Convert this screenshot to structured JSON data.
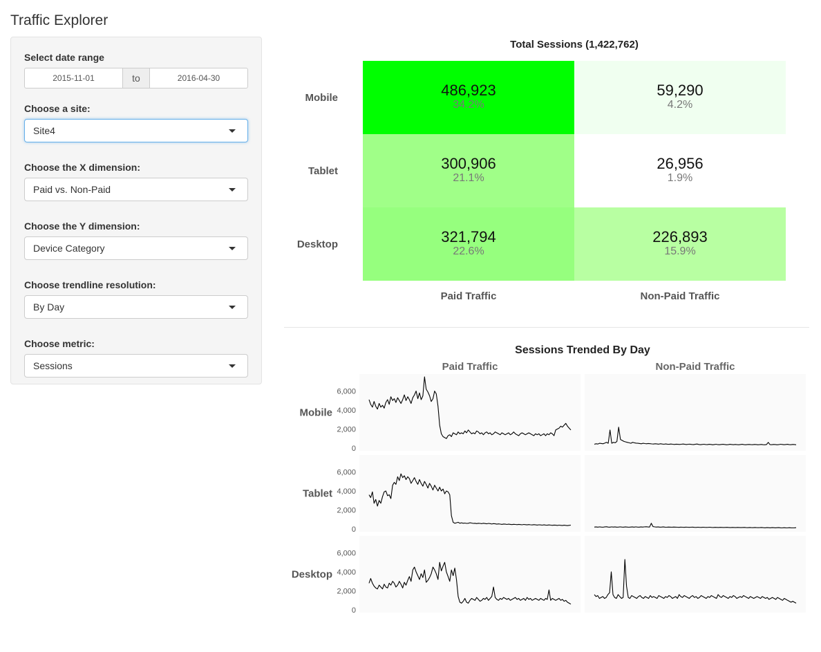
{
  "app": {
    "title": "Traffic Explorer"
  },
  "sidebar": {
    "date_range": {
      "label": "Select date range",
      "start": "2015-11-01",
      "separator": "to",
      "end": "2016-04-30"
    },
    "site": {
      "label": "Choose a site:",
      "value": "Site4"
    },
    "x_dimension": {
      "label": "Choose the X dimension:",
      "value": "Paid vs. Non-Paid"
    },
    "y_dimension": {
      "label": "Choose the Y dimension:",
      "value": "Device Category"
    },
    "resolution": {
      "label": "Choose trendline resolution:",
      "value": "By Day"
    },
    "metric": {
      "label": "Choose metric:",
      "value": "Sessions"
    }
  },
  "heatmap": {
    "title": "Total Sessions (1,422,762)",
    "columns": [
      "Paid Traffic",
      "Non-Paid Traffic"
    ],
    "rows": [
      "Mobile",
      "Tablet",
      "Desktop"
    ],
    "cells": [
      [
        {
          "value": "486,923",
          "pct": "34.2%",
          "color": "#00ff00"
        },
        {
          "value": "59,290",
          "pct": "4.2%",
          "color": "#f0fff0"
        }
      ],
      [
        {
          "value": "300,906",
          "pct": "21.1%",
          "color": "#a0ff88"
        },
        {
          "value": "26,956",
          "pct": "1.9%",
          "color": "#ffffff"
        }
      ],
      [
        {
          "value": "321,794",
          "pct": "22.6%",
          "color": "#96ff7e"
        },
        {
          "value": "226,893",
          "pct": "15.9%",
          "color": "#b8ffa2"
        }
      ]
    ]
  },
  "chart_data": {
    "type": "line",
    "title": "Sessions Trended By Day",
    "columns": [
      "Paid Traffic",
      "Non-Paid Traffic"
    ],
    "rows": [
      "Mobile",
      "Tablet",
      "Desktop"
    ],
    "y_ticks": [
      "6,000",
      "4,000",
      "2,000",
      "0"
    ],
    "ylim": [
      0,
      7500
    ],
    "xlim": [
      "2015-11-01",
      "2016-04-30"
    ],
    "panels": [
      {
        "row": "Mobile",
        "column": "Paid Traffic",
        "values": [
          5100,
          4600,
          4300,
          4900,
          4400,
          4100,
          4700,
          4300,
          4500,
          4200,
          4800,
          5100,
          4600,
          5400,
          5000,
          5200,
          4800,
          5300,
          5000,
          4700,
          5100,
          5600,
          5000,
          5400,
          5100,
          4700,
          5300,
          5600,
          6000,
          5200,
          5800,
          5100,
          5500,
          7500,
          6200,
          5900,
          5500,
          4900,
          5200,
          6000,
          5700,
          4400,
          2400,
          1500,
          1200,
          1100,
          1000,
          1300,
          1400,
          1200,
          1600,
          1500,
          1400,
          1700,
          1500,
          1600,
          1500,
          1800,
          1600,
          1900,
          1700,
          1500,
          1600,
          1500,
          1800,
          1700,
          1500,
          1600,
          1400,
          1600,
          1700,
          1500,
          1600,
          1400,
          1500,
          1700,
          1600,
          1500,
          1400,
          1600,
          1500,
          1400,
          1500,
          1600,
          1400,
          1500,
          1700,
          1500,
          1400,
          1300,
          1500,
          1600,
          1500,
          1400,
          1500,
          1600,
          1500,
          1400,
          1300,
          1500,
          1400,
          1500,
          1300,
          1400,
          1500,
          1300,
          1500,
          1400,
          1600,
          1500,
          1300,
          1900,
          2000,
          2100,
          2300,
          2200,
          2400,
          2600,
          2300,
          2100,
          1900
        ]
      },
      {
        "row": "Mobile",
        "column": "Non-Paid Traffic",
        "values": [
          400,
          450,
          420,
          500,
          480,
          450,
          520,
          600,
          500,
          1900,
          500,
          600,
          550,
          700,
          2200,
          900,
          800,
          700,
          650,
          600,
          550,
          500,
          600,
          550,
          520,
          500,
          480,
          450,
          500,
          470,
          450,
          480,
          460,
          440,
          420,
          450,
          430,
          410,
          450,
          420,
          400,
          430,
          410,
          390,
          420,
          400,
          380,
          410,
          390,
          380,
          400,
          420,
          390,
          370,
          400,
          410,
          380,
          360,
          390,
          420,
          380,
          350,
          380,
          400,
          370,
          360,
          390,
          380,
          340,
          370,
          400,
          360,
          350,
          380,
          390,
          370,
          340,
          360,
          390,
          370,
          350,
          380,
          360,
          340,
          370,
          390,
          360,
          340,
          370,
          380,
          360,
          350,
          380,
          370,
          340,
          360,
          380,
          350,
          340,
          370,
          600,
          360,
          350,
          380,
          370,
          340,
          360,
          400,
          380,
          350,
          370,
          390,
          360,
          350,
          380,
          370,
          340
        ]
      },
      {
        "row": "Tablet",
        "column": "Paid Traffic",
        "values": [
          3600,
          3300,
          3900,
          2700,
          3100,
          2400,
          3000,
          2700,
          3400,
          3900,
          4000,
          3500,
          3600,
          3200,
          4600,
          4900,
          4700,
          5500,
          5100,
          5800,
          5400,
          5600,
          5200,
          5500,
          5300,
          4800,
          5100,
          5400,
          5000,
          4700,
          5200,
          4800,
          4500,
          5000,
          4700,
          4300,
          4800,
          4500,
          4100,
          4600,
          4300,
          4000,
          4400,
          4000,
          4200,
          3700,
          4000,
          3900,
          3600,
          1400,
          700,
          600,
          650,
          700,
          600,
          650,
          600,
          620,
          580,
          600,
          650,
          620,
          580,
          600,
          560,
          600,
          580,
          550,
          600,
          570,
          540,
          580,
          560,
          520,
          560,
          540,
          500,
          530,
          510,
          480,
          520,
          500,
          470,
          500,
          480,
          460,
          490,
          470,
          450,
          480,
          460,
          440,
          470,
          450,
          430,
          460,
          440,
          420,
          450,
          430,
          410,
          440,
          420,
          400,
          430,
          410,
          390,
          420,
          400,
          380,
          410,
          390,
          370,
          400,
          380,
          360,
          390,
          370,
          350,
          380,
          400
        ]
      },
      {
        "row": "Tablet",
        "column": "Non-Paid Traffic",
        "values": [
          200,
          210,
          190,
          220,
          200,
          180,
          210,
          230,
          200,
          190,
          220,
          200,
          210,
          190,
          200,
          220,
          200,
          190,
          210,
          200,
          180,
          200,
          210,
          190,
          220,
          200,
          190,
          210,
          200,
          220,
          230,
          210,
          200,
          600,
          250,
          220,
          200,
          210,
          190,
          200,
          210,
          190,
          180,
          200,
          190,
          180,
          200,
          190,
          180,
          170,
          190,
          180,
          170,
          190,
          180,
          170,
          180,
          190,
          170,
          160,
          180,
          170,
          160,
          180,
          170,
          160,
          170,
          180,
          160,
          150,
          170,
          160,
          150,
          170,
          160,
          150,
          160,
          170,
          150,
          140,
          160,
          150,
          140,
          160,
          150,
          140,
          150,
          160,
          140,
          130,
          150,
          140,
          130,
          150,
          140,
          130,
          140,
          150,
          130,
          120,
          140,
          130,
          120,
          140,
          130,
          120,
          130,
          140,
          120,
          110,
          130,
          120,
          110,
          130,
          120,
          110,
          120,
          130
        ]
      },
      {
        "row": "Desktop",
        "column": "Paid Traffic",
        "values": [
          2800,
          3300,
          2800,
          2500,
          2300,
          2200,
          2600,
          2400,
          2200,
          2700,
          2400,
          2300,
          2800,
          2600,
          3000,
          2800,
          2400,
          2600,
          3000,
          2700,
          2300,
          2900,
          2600,
          3100,
          3500,
          3000,
          4200,
          4500,
          4000,
          3600,
          3200,
          3800,
          3400,
          4200,
          2900,
          3100,
          3400,
          3800,
          4500,
          4200,
          3800,
          3200,
          5000,
          4100,
          4600,
          5000,
          4000,
          3500,
          3000,
          4200,
          3600,
          4400,
          3200,
          1400,
          800,
          700,
          900,
          1200,
          800,
          700,
          1000,
          1200,
          1100,
          1000,
          1300,
          1100,
          900,
          1000,
          1200,
          1100,
          1300,
          1000,
          1200,
          1400,
          2400,
          1300,
          1100,
          1000,
          1200,
          1100,
          1300,
          1200,
          1100,
          1200,
          1000,
          1100,
          1200,
          1300,
          1100,
          1200,
          1000,
          1100,
          1200,
          1000,
          1300,
          1100,
          1200,
          1000,
          1100,
          1200,
          1100,
          1000,
          1200,
          1100,
          1000,
          1200,
          1100,
          2100,
          1000,
          1200,
          1100,
          1000,
          1100,
          1200,
          1000,
          1100,
          900,
          1000,
          800,
          700,
          600
        ]
      },
      {
        "row": "Desktop",
        "column": "Non-Paid Traffic",
        "values": [
          1600,
          1400,
          1500,
          1200,
          1300,
          1400,
          1200,
          1300,
          1600,
          1800,
          4000,
          1600,
          1300,
          1200,
          1600,
          1400,
          1200,
          1300,
          5300,
          2500,
          1300,
          1200,
          1500,
          1400,
          1300,
          1200,
          1400,
          1500,
          1300,
          1200,
          1400,
          1300,
          1200,
          1500,
          1300,
          1400,
          1300,
          1200,
          1500,
          1400,
          1300,
          1200,
          1400,
          1300,
          1500,
          1400,
          1200,
          1300,
          1400,
          1200,
          1600,
          1400,
          1300,
          1500,
          1400,
          1300,
          1200,
          1400,
          1500,
          1300,
          1400,
          1200,
          1300,
          1500,
          1400,
          1300,
          1200,
          1400,
          1300,
          1500,
          1400,
          1300,
          1200,
          1600,
          1400,
          1300,
          1500,
          1400,
          1300,
          1200,
          1400,
          1300,
          1500,
          1400,
          1200,
          1300,
          1400,
          1300,
          1500,
          1400,
          1300,
          1200,
          1400,
          1300,
          1200,
          1300,
          1400,
          1300,
          1200,
          1400,
          1300,
          1200,
          1300,
          1100,
          1200,
          1300,
          1200,
          1100,
          1300,
          1200,
          1100,
          1000,
          1200,
          1100,
          1000,
          900,
          800,
          900,
          800,
          700
        ]
      }
    ]
  }
}
